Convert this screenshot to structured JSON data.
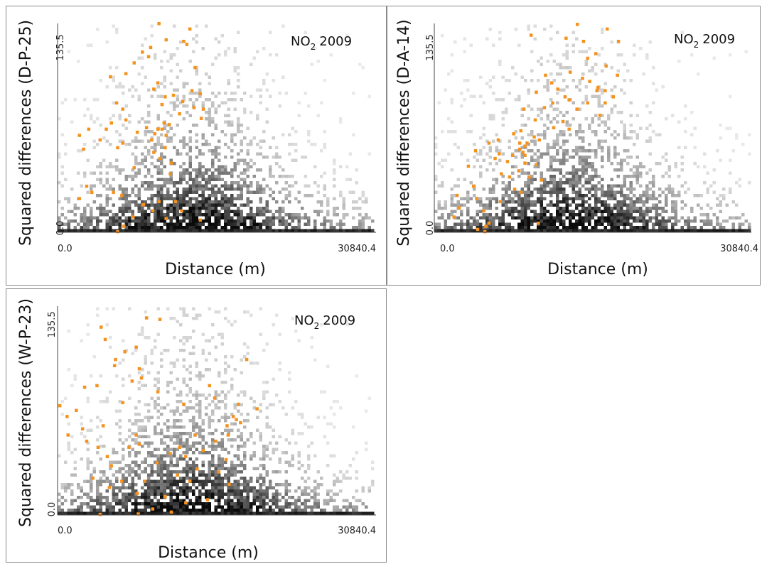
{
  "chart_data": [
    {
      "type": "scatter",
      "title": "NO",
      "title_sub": "2",
      "title_year": "2009",
      "xlabel": "Distance (m)",
      "ylabel": "Squared differences (D-P-25)",
      "xlim": [
        0.0,
        30840.4
      ],
      "ylim": [
        0.0,
        135.5
      ],
      "x_tick_labels": [
        "0.0",
        "30840.4"
      ],
      "y_tick_labels": [
        "0.0",
        "135.5"
      ],
      "grid": false,
      "background_cloud": "grayscale density cloud of all point pairs (darker = denser)",
      "highlight_color": "#f5921e",
      "series": [
        {
          "highlight": true,
          "points": [
            [
              9800,
              135.5
            ],
            [
              12800,
              132
            ],
            [
              10500,
              125
            ],
            [
              12200,
              124
            ],
            [
              12500,
              122
            ],
            [
              9000,
              120
            ],
            [
              8200,
              117
            ],
            [
              7400,
              110
            ],
            [
              8800,
              114
            ],
            [
              6600,
              103
            ],
            [
              13300,
              107
            ],
            [
              5100,
              101
            ],
            [
              9700,
              97
            ],
            [
              9300,
              93
            ],
            [
              13000,
              92
            ],
            [
              10400,
              88
            ],
            [
              13800,
              90
            ],
            [
              11200,
              89
            ],
            [
              12100,
              85
            ],
            [
              5700,
              84
            ],
            [
              10100,
              83
            ],
            [
              6300,
              80
            ],
            [
              13200,
              81
            ],
            [
              14100,
              80
            ],
            [
              11800,
              77
            ],
            [
              13900,
              74
            ],
            [
              6600,
              73
            ],
            [
              10300,
              71
            ],
            [
              10800,
              70
            ],
            [
              5200,
              71
            ],
            [
              3000,
              67
            ],
            [
              8600,
              68
            ],
            [
              4700,
              67
            ],
            [
              9700,
              67
            ],
            [
              10100,
              67
            ],
            [
              2100,
              63
            ],
            [
              10500,
              63
            ],
            [
              7700,
              65
            ],
            [
              9400,
              64
            ],
            [
              4100,
              60
            ],
            [
              9100,
              60
            ],
            [
              6300,
              58
            ],
            [
              5800,
              55
            ],
            [
              2500,
              54
            ],
            [
              9300,
              52
            ],
            [
              10400,
              55
            ],
            [
              9900,
              48
            ],
            [
              11000,
              45
            ],
            [
              7400,
              42
            ],
            [
              10900,
              38
            ],
            [
              2800,
              30
            ],
            [
              2100,
              22
            ],
            [
              3300,
              26
            ],
            [
              6200,
              24
            ],
            [
              9800,
              20
            ],
            [
              5400,
              26
            ],
            [
              11400,
              20
            ],
            [
              8300,
              18
            ],
            [
              12000,
              14
            ],
            [
              7300,
              10
            ],
            [
              6400,
              4
            ],
            [
              10500,
              9
            ],
            [
              13800,
              8
            ],
            [
              5800,
              0.5
            ],
            [
              9200,
              14
            ]
          ]
        }
      ]
    },
    {
      "type": "scatter",
      "title": "NO",
      "title_sub": "2",
      "title_year": "2009",
      "xlabel": "Distance (m)",
      "ylabel": "Squared differences (D-A-14)",
      "xlim": [
        0.0,
        30840.4
      ],
      "ylim": [
        0.0,
        135.5
      ],
      "x_tick_labels": [
        "0.0",
        "30840.4"
      ],
      "y_tick_labels": [
        "0.0",
        "135.5"
      ],
      "grid": false,
      "background_cloud": "grayscale density cloud of all point pairs (darker = denser)",
      "highlight_color": "#f5921e",
      "series": [
        {
          "highlight": true,
          "points": [
            [
              13900,
              135
            ],
            [
              16800,
              132
            ],
            [
              12800,
              126
            ],
            [
              14500,
              124
            ],
            [
              17900,
              124
            ],
            [
              9400,
              128
            ],
            [
              15700,
              116
            ],
            [
              14900,
              113
            ],
            [
              16700,
              108
            ],
            [
              13200,
              104
            ],
            [
              14400,
              100
            ],
            [
              15100,
              98
            ],
            [
              17800,
              102
            ],
            [
              15900,
              94
            ],
            [
              16600,
              92
            ],
            [
              17400,
              88
            ],
            [
              15800,
              92
            ],
            [
              16600,
              84
            ],
            [
              10800,
              102
            ],
            [
              11400,
              97
            ],
            [
              12000,
              93
            ],
            [
              9900,
              91
            ],
            [
              12700,
              88
            ],
            [
              13100,
              86
            ],
            [
              14900,
              84
            ],
            [
              11500,
              84
            ],
            [
              10700,
              81
            ],
            [
              13900,
              80
            ],
            [
              8700,
              80
            ],
            [
              16100,
              76
            ],
            [
              9800,
              73
            ],
            [
              12500,
              72
            ],
            [
              11600,
              68
            ],
            [
              13100,
              67
            ],
            [
              8400,
              66
            ],
            [
              7700,
              64
            ],
            [
              9700,
              62
            ],
            [
              10200,
              60
            ],
            [
              6200,
              60
            ],
            [
              5300,
              58
            ],
            [
              8300,
              58
            ],
            [
              9000,
              58
            ],
            [
              8800,
              56
            ],
            [
              8300,
              54
            ],
            [
              8600,
              52
            ],
            [
              4000,
              53
            ],
            [
              6300,
              51
            ],
            [
              7600,
              50
            ],
            [
              8800,
              50
            ],
            [
              5900,
              48
            ],
            [
              7100,
              46
            ],
            [
              8800,
              45
            ],
            [
              9900,
              44
            ],
            [
              3300,
              43
            ],
            [
              8200,
              40
            ],
            [
              6500,
              38
            ],
            [
              7300,
              36
            ],
            [
              9200,
              36
            ],
            [
              10400,
              34
            ],
            [
              3800,
              30
            ],
            [
              7800,
              28
            ],
            [
              8400,
              26
            ],
            [
              2200,
              24
            ],
            [
              4100,
              22
            ],
            [
              6400,
              20
            ],
            [
              2400,
              16
            ],
            [
              4800,
              14
            ],
            [
              1900,
              10
            ],
            [
              5300,
              6
            ],
            [
              5000,
              4
            ],
            [
              4200,
              2
            ],
            [
              4900,
              0.5
            ],
            [
              10100,
              6
            ]
          ]
        }
      ]
    },
    {
      "type": "scatter",
      "title": "NO",
      "title_sub": "2",
      "title_year": "2009",
      "xlabel": "Distance (m)",
      "ylabel": "Squared differences (W-P-23)",
      "xlim": [
        0.0,
        30840.4
      ],
      "ylim": [
        0.0,
        135.5
      ],
      "x_tick_labels": [
        "0.0",
        "30840.4"
      ],
      "y_tick_labels": [
        "0.0",
        "135.5"
      ],
      "grid": false,
      "background_cloud": "grayscale density cloud of all point pairs (darker = denser)",
      "highlight_color": "#f5921e",
      "series": [
        {
          "highlight": true,
          "points": [
            [
              8600,
              128
            ],
            [
              9900,
              127
            ],
            [
              4200,
              122
            ],
            [
              4600,
              114
            ],
            [
              7600,
              109
            ],
            [
              6500,
              106
            ],
            [
              5600,
              101
            ],
            [
              5500,
              97
            ],
            [
              7900,
              95
            ],
            [
              8100,
              89
            ],
            [
              7200,
              87
            ],
            [
              3800,
              84
            ],
            [
              2600,
              83
            ],
            [
              9700,
              80
            ],
            [
              18300,
              101
            ],
            [
              14700,
              84
            ],
            [
              15200,
              76
            ],
            [
              17500,
              72
            ],
            [
              6300,
              73
            ],
            [
              12200,
              72
            ],
            [
              200,
              71
            ],
            [
              1800,
              68
            ],
            [
              19300,
              69
            ],
            [
              900,
              64
            ],
            [
              17000,
              64
            ],
            [
              17300,
              62
            ],
            [
              17700,
              60
            ],
            [
              16400,
              58
            ],
            [
              4400,
              58
            ],
            [
              2400,
              56
            ],
            [
              1000,
              52
            ],
            [
              7600,
              52
            ],
            [
              13300,
              52
            ],
            [
              16500,
              52
            ],
            [
              15300,
              48
            ],
            [
              2800,
              48
            ],
            [
              7900,
              46
            ],
            [
              3900,
              44
            ],
            [
              11800,
              44
            ],
            [
              6900,
              44
            ],
            [
              14100,
              42
            ],
            [
              10900,
              40
            ],
            [
              4800,
              38
            ],
            [
              12400,
              38
            ],
            [
              16300,
              36
            ],
            [
              9600,
              34
            ],
            [
              5200,
              32
            ],
            [
              13500,
              30
            ],
            [
              15600,
              28
            ],
            [
              11600,
              26
            ],
            [
              3400,
              24
            ],
            [
              8400,
              22
            ],
            [
              6200,
              22
            ],
            [
              12800,
              22
            ],
            [
              16600,
              20
            ],
            [
              5000,
              18
            ],
            [
              7700,
              14
            ],
            [
              10400,
              12
            ],
            [
              12400,
              8
            ],
            [
              14500,
              10
            ],
            [
              9200,
              4
            ],
            [
              7800,
              0.8
            ],
            [
              4100,
              0.5
            ],
            [
              11000,
              2
            ]
          ]
        }
      ]
    }
  ]
}
